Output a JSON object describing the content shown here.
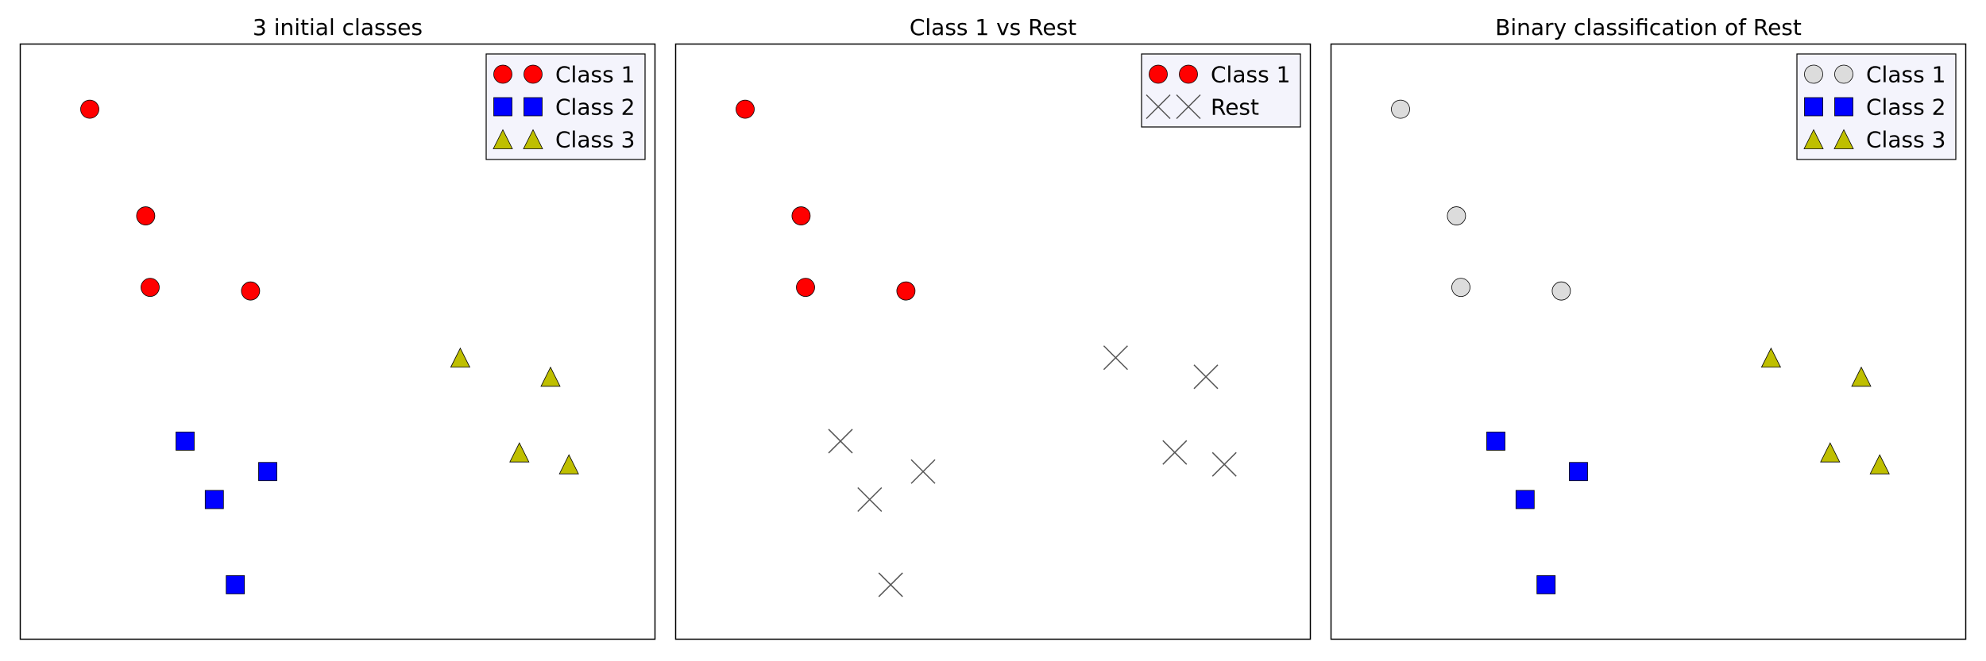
{
  "chart_data": [
    {
      "type": "scatter",
      "title": "3 initial classes",
      "legend_position": "top-right",
      "axes_visible": false,
      "legend": [
        {
          "label": "Class 1",
          "marker": "circle",
          "color": "#ff0000"
        },
        {
          "label": "Class 2",
          "marker": "square",
          "color": "#0000ff"
        },
        {
          "label": "Class 3",
          "marker": "triangle",
          "color": "#bfbf00"
        }
      ],
      "series": [
        {
          "label": "Class 1",
          "marker": "circle",
          "color": "#ff0000",
          "points": [
            [
              1.1,
              8.9
            ],
            [
              1.98,
              7.11
            ],
            [
              2.05,
              5.91
            ],
            [
              3.63,
              5.85
            ]
          ]
        },
        {
          "label": "Class 2",
          "marker": "square",
          "color": "#0000ff",
          "points": [
            [
              2.6,
              3.33
            ],
            [
              3.06,
              2.35
            ],
            [
              3.9,
              2.82
            ],
            [
              3.39,
              0.92
            ]
          ]
        },
        {
          "label": "Class 3",
          "marker": "triangle",
          "color": "#bfbf00",
          "points": [
            [
              6.93,
              4.73
            ],
            [
              8.35,
              4.41
            ],
            [
              7.86,
              3.14
            ],
            [
              8.64,
              2.94
            ]
          ]
        }
      ],
      "xlim": [
        0,
        10
      ],
      "ylim": [
        0,
        10
      ]
    },
    {
      "type": "scatter",
      "title": "Class 1 vs Rest",
      "legend_position": "top-right",
      "axes_visible": false,
      "legend": [
        {
          "label": "Class 1",
          "marker": "circle",
          "color": "#ff0000"
        },
        {
          "label": "Rest",
          "marker": "x",
          "color": "#000000"
        }
      ],
      "series": [
        {
          "label": "Class 1",
          "marker": "circle",
          "color": "#ff0000",
          "points": [
            [
              1.1,
              8.9
            ],
            [
              1.98,
              7.11
            ],
            [
              2.05,
              5.91
            ],
            [
              3.63,
              5.85
            ]
          ]
        },
        {
          "label": "Rest",
          "marker": "x",
          "color": "#000000",
          "points": [
            [
              2.6,
              3.33
            ],
            [
              3.06,
              2.35
            ],
            [
              3.9,
              2.82
            ],
            [
              3.39,
              0.92
            ],
            [
              6.93,
              4.73
            ],
            [
              8.35,
              4.41
            ],
            [
              7.86,
              3.14
            ],
            [
              8.64,
              2.94
            ]
          ]
        }
      ],
      "xlim": [
        0,
        10
      ],
      "ylim": [
        0,
        10
      ]
    },
    {
      "type": "scatter",
      "title": "Binary classification of Rest",
      "legend_position": "top-right",
      "axes_visible": false,
      "legend": [
        {
          "label": "Class 1",
          "marker": "circle",
          "color": "#dcdcdc"
        },
        {
          "label": "Class 2",
          "marker": "square",
          "color": "#0000ff"
        },
        {
          "label": "Class 3",
          "marker": "triangle",
          "color": "#bfbf00"
        }
      ],
      "series": [
        {
          "label": "Class 1",
          "marker": "circle",
          "color": "#dcdcdc",
          "points": [
            [
              1.1,
              8.9
            ],
            [
              1.98,
              7.11
            ],
            [
              2.05,
              5.91
            ],
            [
              3.63,
              5.85
            ]
          ]
        },
        {
          "label": "Class 2",
          "marker": "square",
          "color": "#0000ff",
          "points": [
            [
              2.6,
              3.33
            ],
            [
              3.06,
              2.35
            ],
            [
              3.9,
              2.82
            ],
            [
              3.39,
              0.92
            ]
          ]
        },
        {
          "label": "Class 3",
          "marker": "triangle",
          "color": "#bfbf00",
          "points": [
            [
              6.93,
              4.73
            ],
            [
              8.35,
              4.41
            ],
            [
              7.86,
              3.14
            ],
            [
              8.64,
              2.94
            ]
          ]
        }
      ],
      "xlim": [
        0,
        10
      ],
      "ylim": [
        0,
        10
      ]
    }
  ]
}
